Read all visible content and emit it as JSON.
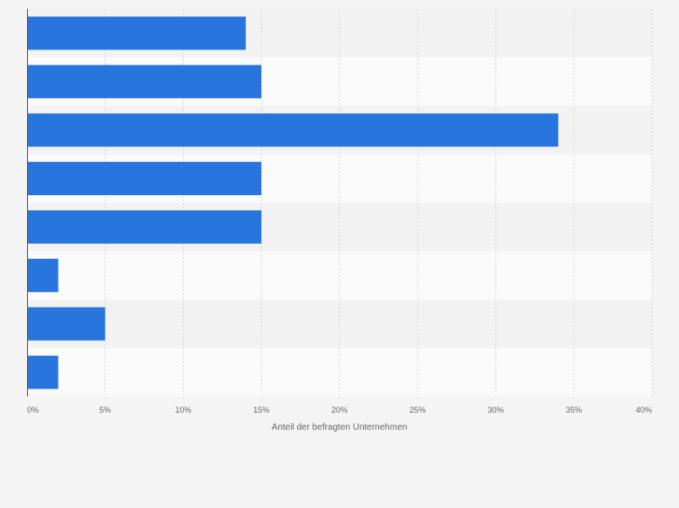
{
  "chart_data": {
    "type": "bar",
    "orientation": "horizontal",
    "categories": [
      "",
      "",
      "",
      "",
      "",
      "",
      "",
      ""
    ],
    "values": [
      14,
      15,
      34,
      15,
      15,
      2,
      5,
      2
    ],
    "x_ticks": [
      "0%",
      "5%",
      "10%",
      "15%",
      "20%",
      "25%",
      "30%",
      "35%",
      "40%"
    ],
    "xlim": [
      0,
      40
    ],
    "xlabel": "Anteil der befragten Unternehmen",
    "ylabel": "",
    "title": "",
    "grid": "vertical-dashed",
    "bar_color": "#2876dd",
    "row_band_colors": [
      "#f2f2f2",
      "#fafafa"
    ],
    "axis_color": "#555555",
    "tick_label_color": "#666666"
  }
}
